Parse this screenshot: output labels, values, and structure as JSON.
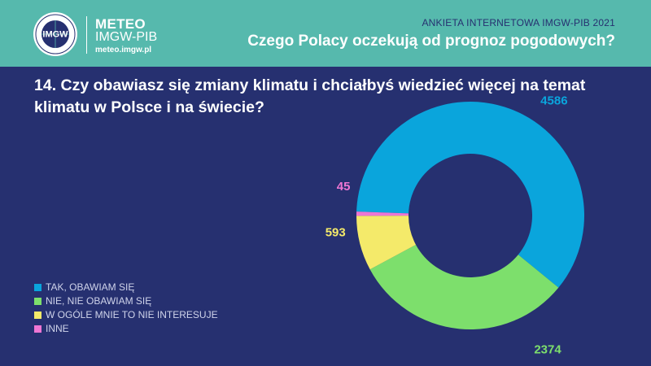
{
  "header": {
    "logo_text": "IMGW",
    "brand_name": "METEO",
    "brand_org": "IMGW-PIB",
    "brand_url": "meteo.imgw.pl",
    "survey_label": "ANKIETA INTERNETOWA IMGW-PIB 2021",
    "survey_title": "Czego Polacy oczekują od prognoz pogodowych?"
  },
  "question": "14. Czy obawiasz się zmiany klimatu i chciałbyś wiedzieć więcej na temat klimatu w Polsce i na świecie?",
  "legend": [
    {
      "label": "TAK, OBAWIAM SIĘ",
      "color": "#0aa5dc"
    },
    {
      "label": "NIE, NIE OBAWIAM SIĘ",
      "color": "#7ddf6c"
    },
    {
      "label": "W OGÓLE MNIE TO NIE INTERESUJE",
      "color": "#f4ea6a"
    },
    {
      "label": "INNE",
      "color": "#ee76d4"
    }
  ],
  "chart_data": {
    "type": "pie",
    "variant": "donut",
    "categories": [
      "TAK, OBAWIAM SIĘ",
      "NIE, NIE OBAWIAM SIĘ",
      "W OGÓLE MNIE TO NIE INTERESUJE",
      "INNE"
    ],
    "values": [
      4586,
      2374,
      593,
      45
    ],
    "colors": [
      "#0aa5dc",
      "#7ddf6c",
      "#f4ea6a",
      "#ee76d4"
    ],
    "data_labels": [
      "4586",
      "2374",
      "593",
      "45"
    ],
    "legend_position": "bottom-left"
  }
}
